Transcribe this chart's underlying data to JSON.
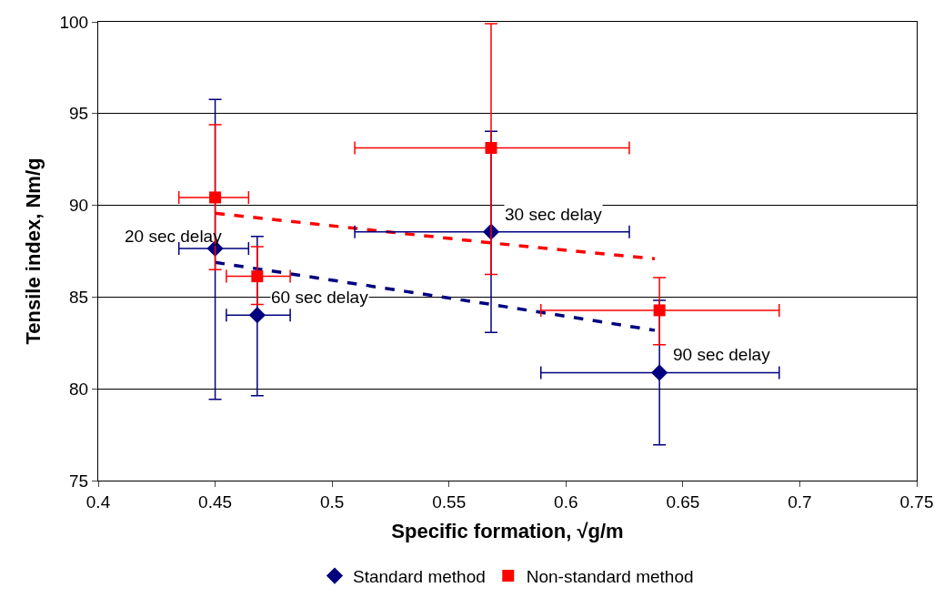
{
  "chart_data": {
    "type": "scatter",
    "xlabel": "Specific formation, √g/m",
    "ylabel": "Tensile index, Nm/g",
    "xlim": [
      0.4,
      0.75
    ],
    "xticks": [
      0.4,
      0.45,
      0.5,
      0.55,
      0.6,
      0.65,
      0.7,
      0.75
    ],
    "ylim": [
      75,
      100
    ],
    "yticks": [
      75,
      80,
      85,
      90,
      95,
      100
    ],
    "grid": "y",
    "legend": "bottom",
    "series": [
      {
        "name": "Standard method",
        "color": "#000080",
        "marker": "diamond",
        "x": [
          0.45,
          0.468,
          0.568,
          0.64
        ],
        "values": [
          87.65,
          84.02,
          88.56,
          80.88
        ],
        "errors": [
          [
            79.43,
            95.77
          ],
          [
            79.62,
            88.3
          ],
          [
            83.07,
            94.04
          ],
          [
            76.95,
            84.82
          ]
        ],
        "xerrors": [
          [
            0.4345,
            0.4643
          ],
          [
            0.4548,
            0.4821
          ],
          [
            0.5097,
            0.6271
          ],
          [
            0.5893,
            0.6912
          ]
        ]
      },
      {
        "name": "Non-standard method",
        "color": "#ff0000",
        "marker": "square",
        "x": [
          0.45,
          0.468,
          0.568,
          0.64
        ],
        "values": [
          90.43,
          86.13,
          93.13,
          84.28
        ],
        "errors": [
          [
            86.5,
            94.4
          ],
          [
            84.6,
            87.75
          ],
          [
            86.24,
            99.9
          ],
          [
            82.4,
            86.06
          ]
        ],
        "xerrors": [
          [
            0.4345,
            0.4643
          ],
          [
            0.4548,
            0.4821
          ],
          [
            0.5097,
            0.6271
          ],
          [
            0.5893,
            0.6912
          ]
        ]
      },
      {
        "type": "line",
        "color": "#000080",
        "line_style": "dashed",
        "marker": "none",
        "x": [
          0.45,
          0.568,
          0.638
        ],
        "values": [
          86.89,
          84.6,
          83.19
        ]
      },
      {
        "type": "line",
        "color": "#ff0000",
        "line_style": "dashed",
        "marker": "none",
        "x": [
          0.45,
          0.568,
          0.638
        ],
        "values": [
          89.57,
          87.95,
          87.09
        ]
      }
    ],
    "annotations": [
      {
        "text": "20 sec delay",
        "x": 0.45,
        "y": 87.65
      },
      {
        "text": "60 sec delay",
        "x": 0.468,
        "y": 84.02
      },
      {
        "text": "30 sec delay",
        "x": 0.568,
        "y": 88.56
      },
      {
        "text": "90 sec delay",
        "x": 0.64,
        "y": 80.88
      }
    ]
  }
}
